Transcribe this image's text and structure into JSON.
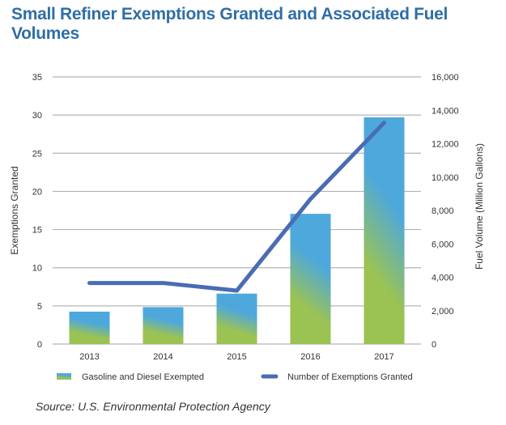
{
  "chart_data": {
    "type": "bar",
    "title": "Small Refiner Exemptions Granted and Associated Fuel Volumes",
    "categories": [
      "2013",
      "2014",
      "2015",
      "2016",
      "2017"
    ],
    "series": [
      {
        "name": "Gasoline and Diesel Exempted",
        "type": "bar",
        "axis": "right",
        "values": [
          1940,
          2210,
          3020,
          7800,
          13580
        ],
        "colors": [
          "#9bc353",
          "#4ea8dc"
        ]
      },
      {
        "name": "Number of Exemptions Granted",
        "type": "line",
        "axis": "left",
        "values": [
          8,
          8,
          7,
          19,
          29
        ],
        "color": "#4a6cb3"
      }
    ],
    "ylabel": "Exemptions Granted",
    "ylim": [
      0,
      35
    ],
    "yticks": [
      "0",
      "5",
      "10",
      "15",
      "20",
      "25",
      "30",
      "35"
    ],
    "y2label": "Fuel Volume (Million Gallons)",
    "y2lim": [
      0,
      16000
    ],
    "y2ticks": [
      "0",
      "2,000",
      "4,000",
      "6,000",
      "8,000",
      "10,000",
      "12,000",
      "14,000",
      "16,000"
    ],
    "grid": true,
    "legend": "bottom"
  },
  "source": "Source: U.S. Environmental Protection Agency"
}
